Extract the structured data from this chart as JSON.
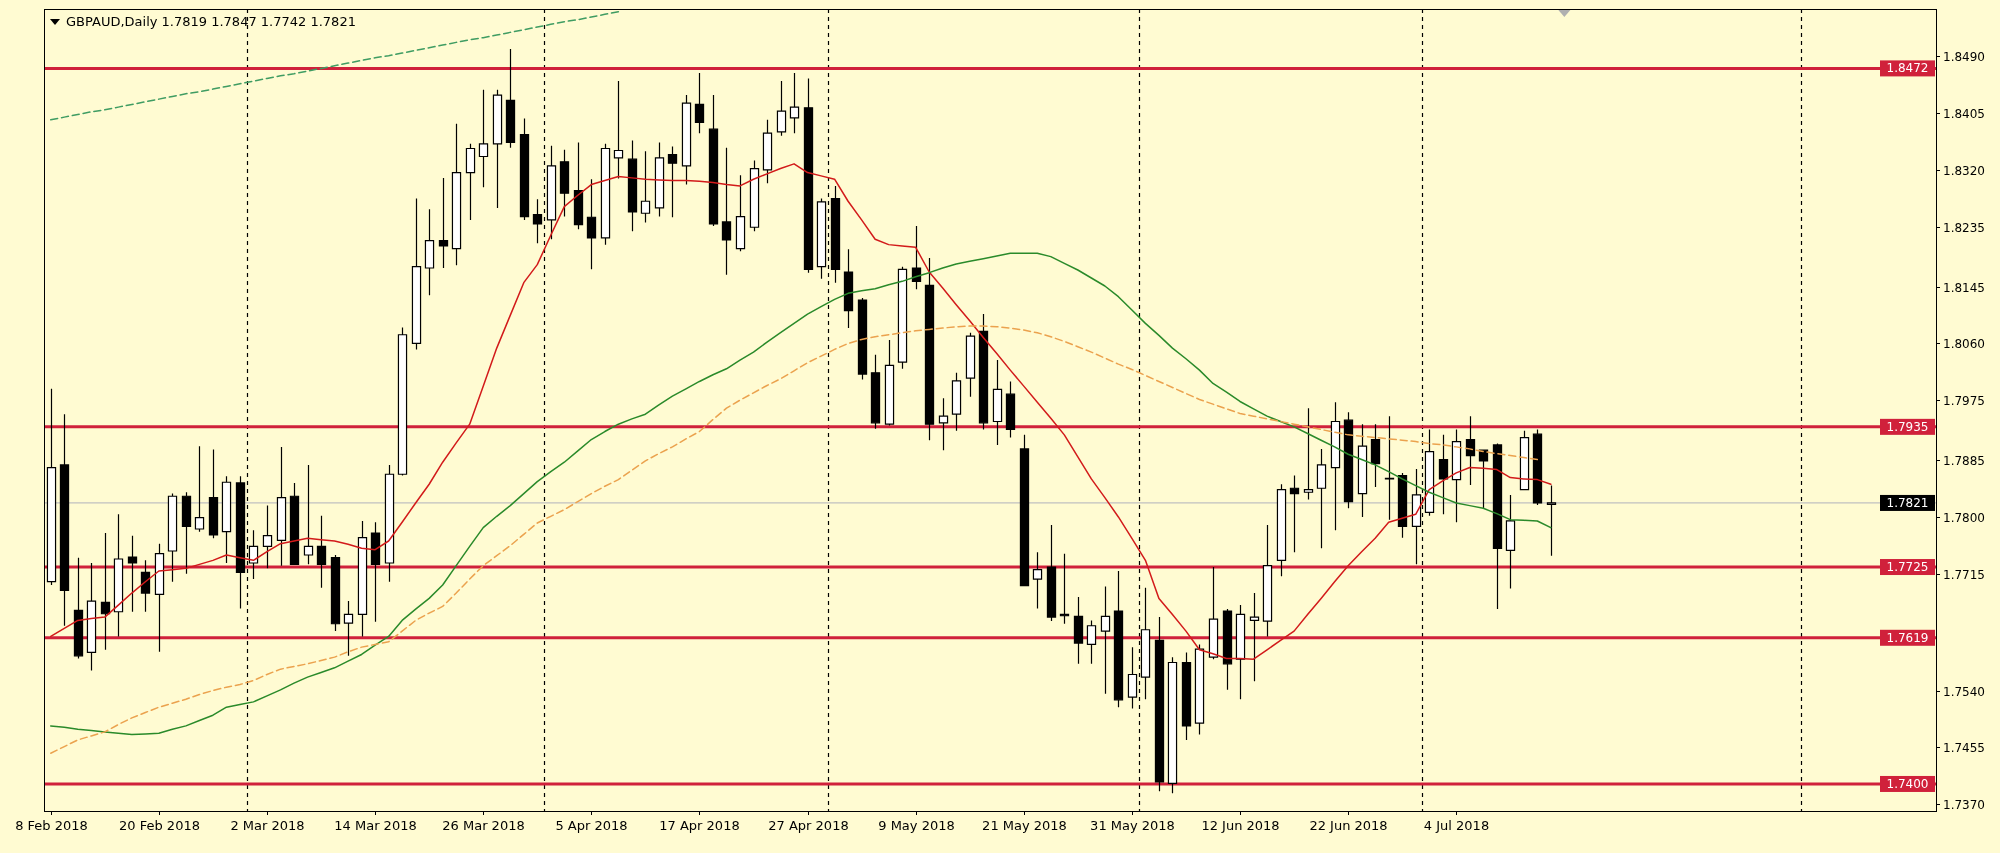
{
  "chart_data": {
    "type": "candlestick",
    "title": "GBPAUD,Daily  1.7819 1.7847 1.7742 1.7821",
    "color": "#000000",
    "categories": [
      "8 Feb 2018",
      null,
      null,
      null,
      null,
      null,
      null,
      null,
      "20 Feb 2018",
      null,
      null,
      null,
      null,
      null,
      null,
      null,
      "2 Mar 2018",
      null,
      null,
      null,
      null,
      null,
      null,
      null,
      "14 Mar 2018",
      null,
      null,
      null,
      null,
      null,
      null,
      null,
      "26 Mar 2018",
      null,
      null,
      null,
      null,
      null,
      null,
      null,
      "5 Apr 2018",
      null,
      null,
      null,
      null,
      null,
      null,
      null,
      "17 Apr 2018",
      null,
      null,
      null,
      null,
      null,
      null,
      null,
      "27 Apr 2018",
      null,
      null,
      null,
      null,
      null,
      null,
      null,
      "9 May 2018",
      null,
      null,
      null,
      null,
      null,
      null,
      null,
      "21 May 2018",
      null,
      null,
      null,
      null,
      null,
      null,
      null,
      "31 May 2018",
      null,
      null,
      null,
      null,
      null,
      null,
      null,
      "12 Jun 2018",
      null,
      null,
      null,
      null,
      null,
      null,
      null,
      "22 Jun 2018",
      null,
      null,
      null,
      null,
      null,
      null,
      null,
      "4 Jul 2018",
      null,
      null,
      null,
      null,
      null,
      null,
      null,
      null,
      null,
      null,
      null,
      null,
      null,
      null,
      null,
      null,
      null,
      null,
      null,
      null,
      null,
      null,
      null,
      null,
      null,
      null,
      null,
      null,
      null,
      null,
      null,
      null,
      null,
      null,
      null
    ],
    "ohlc": [
      [
        1.7703,
        1.7992,
        1.7698,
        1.7874
      ],
      [
        1.7878,
        1.7954,
        1.7637,
        1.769
      ],
      [
        1.766,
        1.7739,
        1.7588,
        1.7592
      ],
      [
        1.7597,
        1.7731,
        1.757,
        1.7674
      ],
      [
        1.7672,
        1.7776,
        1.7601,
        1.7655
      ],
      [
        1.7658,
        1.7804,
        1.7621,
        1.7737
      ],
      [
        1.774,
        1.7772,
        1.7658,
        1.7731
      ],
      [
        1.7717,
        1.7735,
        1.7658,
        1.7686
      ],
      [
        1.7684,
        1.776,
        1.7598,
        1.7745
      ],
      [
        1.7749,
        1.7835,
        1.7703,
        1.7831
      ],
      [
        1.7831,
        1.7837,
        1.7715,
        1.7786
      ],
      [
        1.7782,
        1.7906,
        1.7778,
        1.7799
      ],
      [
        1.7829,
        1.7901,
        1.7768,
        1.7773
      ],
      [
        1.7778,
        1.7861,
        1.7731,
        1.7852
      ],
      [
        1.7851,
        1.7861,
        1.7663,
        1.7717
      ],
      [
        1.7731,
        1.778,
        1.7707,
        1.7756
      ],
      [
        1.7756,
        1.7817,
        1.7723,
        1.7772
      ],
      [
        1.7765,
        1.7905,
        1.7727,
        1.7829
      ],
      [
        1.7831,
        1.7851,
        1.7729,
        1.7729
      ],
      [
        1.7743,
        1.7878,
        1.7729,
        1.7756
      ],
      [
        1.7756,
        1.7802,
        1.7694,
        1.7729
      ],
      [
        1.7739,
        1.7743,
        1.7629,
        1.764
      ],
      [
        1.7641,
        1.7674,
        1.7592,
        1.7654
      ],
      [
        1.7654,
        1.7794,
        1.7621,
        1.7769
      ],
      [
        1.7776,
        1.7792,
        1.7643,
        1.7729
      ],
      [
        1.7731,
        1.7878,
        1.7703,
        1.7864
      ],
      [
        1.7864,
        1.8084,
        1.7862,
        1.8073
      ],
      [
        1.806,
        1.8277,
        1.8051,
        1.8175
      ],
      [
        1.8173,
        1.8261,
        1.8132,
        1.8214
      ],
      [
        1.8214,
        1.8308,
        1.8173,
        1.8206
      ],
      [
        1.8202,
        1.8389,
        1.8177,
        1.8316
      ],
      [
        1.8316,
        1.8359,
        1.8245,
        1.8352
      ],
      [
        1.834,
        1.844,
        1.8294,
        1.8359
      ],
      [
        1.8359,
        1.844,
        1.8263,
        1.8432
      ],
      [
        1.8424,
        1.8501,
        1.8353,
        1.8361
      ],
      [
        1.8373,
        1.8397,
        1.8245,
        1.825
      ],
      [
        1.8253,
        1.8276,
        1.821,
        1.8239
      ],
      [
        1.8245,
        1.8356,
        1.8216,
        1.8326
      ],
      [
        1.8332,
        1.835,
        1.825,
        1.8285
      ],
      [
        1.8289,
        1.8361,
        1.8231,
        1.8238
      ],
      [
        1.8249,
        1.8306,
        1.8171,
        1.8218
      ],
      [
        1.8218,
        1.8359,
        1.8208,
        1.8352
      ],
      [
        1.8338,
        1.8453,
        1.8307,
        1.8349
      ],
      [
        1.8336,
        1.8364,
        1.8228,
        1.8257
      ],
      [
        1.8255,
        1.8348,
        1.8241,
        1.8273
      ],
      [
        1.8263,
        1.8361,
        1.825,
        1.8338
      ],
      [
        1.8343,
        1.8355,
        1.8249,
        1.833
      ],
      [
        1.8326,
        1.8432,
        1.8298,
        1.842
      ],
      [
        1.8418,
        1.8465,
        1.8375,
        1.8391
      ],
      [
        1.8381,
        1.8432,
        1.8236,
        1.8239
      ],
      [
        1.8242,
        1.8353,
        1.8163,
        1.8215
      ],
      [
        1.8202,
        1.8312,
        1.8198,
        1.825
      ],
      [
        1.8234,
        1.8334,
        1.8228,
        1.8322
      ],
      [
        1.832,
        1.8395,
        1.83,
        1.8375
      ],
      [
        1.8377,
        1.8453,
        1.8371,
        1.8408
      ],
      [
        1.8398,
        1.8465,
        1.8375,
        1.8414
      ],
      [
        1.8413,
        1.8457,
        1.8166,
        1.8171
      ],
      [
        1.8175,
        1.8277,
        1.8157,
        1.8272
      ],
      [
        1.8277,
        1.8296,
        1.8151,
        1.8171
      ],
      [
        1.8167,
        1.8201,
        1.8083,
        1.8109
      ],
      [
        1.8125,
        1.8128,
        1.8006,
        1.8014
      ],
      [
        1.8016,
        1.8043,
        1.7932,
        1.7941
      ],
      [
        1.7939,
        1.8065,
        1.7937,
        1.8027
      ],
      [
        1.8032,
        1.8175,
        1.8022,
        1.8171
      ],
      [
        1.8173,
        1.8236,
        1.8141,
        1.8153
      ],
      [
        1.8147,
        1.8188,
        1.7915,
        1.7939
      ],
      [
        1.7941,
        1.7978,
        1.79,
        1.7951
      ],
      [
        1.7954,
        1.8016,
        1.7929,
        1.8004
      ],
      [
        1.8008,
        1.8076,
        1.798,
        1.8071
      ],
      [
        1.8078,
        1.8104,
        1.7931,
        1.7941
      ],
      [
        1.7943,
        1.8035,
        1.7908,
        1.7991
      ],
      [
        1.7984,
        1.8003,
        1.7919,
        1.7931
      ],
      [
        1.7902,
        1.7923,
        1.7697,
        1.7697
      ],
      [
        1.7707,
        1.7747,
        1.7663,
        1.7721
      ],
      [
        1.7725,
        1.7788,
        1.7644,
        1.765
      ],
      [
        1.7654,
        1.7745,
        1.764,
        1.7652
      ],
      [
        1.7651,
        1.768,
        1.758,
        1.7611
      ],
      [
        1.7609,
        1.7645,
        1.758,
        1.7637
      ],
      [
        1.7629,
        1.7696,
        1.7535,
        1.7651
      ],
      [
        1.7659,
        1.7719,
        1.7515,
        1.7526
      ],
      [
        1.753,
        1.7605,
        1.7513,
        1.7564
      ],
      [
        1.756,
        1.7694,
        1.7527,
        1.7631
      ],
      [
        1.7615,
        1.765,
        1.7389,
        1.7403
      ],
      [
        1.7401,
        1.759,
        1.7386,
        1.7582
      ],
      [
        1.7582,
        1.7597,
        1.7466,
        1.7487
      ],
      [
        1.7491,
        1.7609,
        1.7474,
        1.7602
      ],
      [
        1.759,
        1.7725,
        1.7587,
        1.7647
      ],
      [
        1.7659,
        1.7662,
        1.7541,
        1.758
      ],
      [
        1.7587,
        1.7668,
        1.7527,
        1.7654
      ],
      [
        1.7645,
        1.7686,
        1.7554,
        1.765
      ],
      [
        1.7644,
        1.7788,
        1.7621,
        1.7727
      ],
      [
        1.7735,
        1.7849,
        1.7711,
        1.7841
      ],
      [
        1.7843,
        1.7862,
        1.7747,
        1.7835
      ],
      [
        1.7837,
        1.7963,
        1.7826,
        1.7841
      ],
      [
        1.7843,
        1.7902,
        1.7753,
        1.7878
      ],
      [
        1.7874,
        1.7972,
        1.778,
        1.7943
      ],
      [
        1.7945,
        1.7957,
        1.7813,
        1.7823
      ],
      [
        1.7835,
        1.7939,
        1.78,
        1.7906
      ],
      [
        1.7916,
        1.7939,
        1.7845,
        1.788
      ],
      [
        1.7857,
        1.7951,
        1.7796,
        1.7858
      ],
      [
        1.7862,
        1.7866,
        1.7769,
        1.7786
      ],
      [
        1.7786,
        1.7872,
        1.7729,
        1.7833
      ],
      [
        1.7807,
        1.7931,
        1.7802,
        1.7898
      ],
      [
        1.7886,
        1.7923,
        1.7804,
        1.7857
      ],
      [
        1.7856,
        1.7931,
        1.7792,
        1.7913
      ],
      [
        1.7916,
        1.7951,
        1.7848,
        1.7892
      ],
      [
        1.79,
        1.79,
        1.7813,
        1.7884
      ],
      [
        1.7908,
        1.791,
        1.7662,
        1.7753
      ],
      [
        1.775,
        1.7833,
        1.7693,
        1.7794
      ],
      [
        1.7841,
        1.7929,
        1.784,
        1.7919
      ],
      [
        1.7924,
        1.7931,
        1.7818,
        1.7821
      ],
      [
        1.7819,
        1.7847,
        1.7742,
        1.7821
      ],
      null,
      null,
      null,
      null,
      null,
      null,
      null,
      null,
      null,
      null,
      null,
      null,
      null,
      null,
      null,
      null,
      null,
      null,
      null,
      null,
      null,
      null,
      null,
      null,
      null,
      null,
      null,
      null
    ],
    "series": [
      {
        "type": "line",
        "color": "#d21a1a",
        "values": [
          1.7621,
          1.7633,
          1.7645,
          1.7648,
          1.765,
          1.7668,
          1.7686,
          1.7703,
          1.7719,
          1.7721,
          1.7723,
          1.7729,
          1.7735,
          1.7743,
          1.7739,
          1.7735,
          1.7748,
          1.776,
          1.7764,
          1.7768,
          1.7766,
          1.7764,
          1.7759,
          1.7753,
          1.7751,
          1.7764,
          1.7792,
          1.7821,
          1.7849,
          1.7882,
          1.7911,
          1.7939,
          1.7996,
          1.8053,
          1.8102,
          1.8151,
          1.8178,
          1.8222,
          1.8265,
          1.8282,
          1.8298,
          1.8304,
          1.831,
          1.8308,
          1.8306,
          1.8305,
          1.8304,
          1.8304,
          1.8303,
          1.8301,
          1.8298,
          1.8296,
          1.8306,
          1.8314,
          1.8322,
          1.8329,
          1.8316,
          1.8311,
          1.8306,
          1.8273,
          1.8245,
          1.8216,
          1.8208,
          1.8206,
          1.8204,
          1.8167,
          1.8143,
          1.8118,
          1.8094,
          1.8069,
          1.8045,
          1.802,
          1.7996,
          1.7972,
          1.7948,
          1.7923,
          1.789,
          1.7857,
          1.7829,
          1.78,
          1.7768,
          1.7735,
          1.7678,
          1.7654,
          1.7629,
          1.7601,
          1.7595,
          1.7588,
          1.7588,
          1.7587,
          1.7601,
          1.7615,
          1.7629,
          1.7654,
          1.7678,
          1.7703,
          1.7727,
          1.7748,
          1.7768,
          1.7792,
          1.7798,
          1.7804,
          1.7841,
          1.7854,
          1.7866,
          1.7874,
          1.7873,
          1.7871,
          1.7859,
          1.7857,
          1.7856,
          1.7849,
          null,
          null,
          null,
          null,
          null,
          null,
          null,
          null,
          null,
          null,
          null,
          null,
          null,
          null,
          null,
          null,
          null,
          null,
          null,
          null,
          null,
          null,
          null,
          null,
          null,
          null,
          null,
          null
        ]
      },
      {
        "type": "line",
        "color": "#2a8a2a",
        "values": [
          1.7487,
          1.7485,
          1.7482,
          1.748,
          1.7478,
          1.7476,
          1.7474,
          1.7475,
          1.7476,
          1.7482,
          1.7487,
          1.7495,
          1.7503,
          1.7515,
          1.7519,
          1.7523,
          1.7532,
          1.7541,
          1.7551,
          1.756,
          1.7567,
          1.7574,
          1.7584,
          1.7594,
          1.7608,
          1.7621,
          1.7645,
          1.7662,
          1.7678,
          1.7698,
          1.7727,
          1.7756,
          1.7784,
          1.7801,
          1.7817,
          1.7835,
          1.7853,
          1.7868,
          1.7882,
          1.7899,
          1.7916,
          1.7928,
          1.7939,
          1.7947,
          1.7954,
          1.7968,
          1.7981,
          1.7992,
          1.8003,
          1.8013,
          1.8022,
          1.8035,
          1.8047,
          1.8062,
          1.8076,
          1.809,
          1.8104,
          1.8115,
          1.8126,
          1.8135,
          1.8139,
          1.8142,
          1.8148,
          1.8153,
          1.816,
          1.8166,
          1.8173,
          1.8179,
          1.8183,
          1.8187,
          1.8191,
          1.8195,
          1.8195,
          1.8195,
          1.819,
          1.818,
          1.817,
          1.8158,
          1.8146,
          1.813,
          1.811,
          1.809,
          1.8072,
          1.8053,
          1.8037,
          1.802,
          1.8,
          1.7987,
          1.7973,
          1.7962,
          1.7951,
          1.7943,
          1.7935,
          1.7925,
          1.7915,
          1.7905,
          1.7894,
          1.7886,
          1.7878,
          1.7868,
          1.7857,
          1.7847,
          1.7837,
          1.7829,
          1.7821,
          1.7817,
          1.7813,
          1.7805,
          1.7796,
          1.7795,
          1.7794,
          1.7784,
          null,
          null,
          null,
          null,
          null,
          null,
          null,
          null,
          null,
          null,
          null,
          null,
          null,
          null,
          null,
          null,
          null,
          null,
          null,
          null,
          null,
          null,
          null,
          null,
          null,
          null,
          null,
          null
        ]
      },
      {
        "type": "line",
        "color": "#eba24e",
        "line_style": "dashed",
        "values": [
          1.7446,
          1.7456,
          1.7466,
          1.7472,
          1.7478,
          1.7489,
          1.7499,
          1.7507,
          1.7515,
          1.7521,
          1.7527,
          1.7534,
          1.754,
          1.7545,
          1.7549,
          1.7555,
          1.7564,
          1.7572,
          1.7576,
          1.758,
          1.7585,
          1.759,
          1.7598,
          1.7605,
          1.7609,
          1.7613,
          1.7629,
          1.7645,
          1.7656,
          1.7666,
          1.7686,
          1.7707,
          1.7727,
          1.7742,
          1.7757,
          1.7774,
          1.7791,
          1.7801,
          1.7811,
          1.7823,
          1.7835,
          1.7846,
          1.7856,
          1.787,
          1.7884,
          1.7895,
          1.7905,
          1.7917,
          1.7928,
          1.7946,
          1.7963,
          1.7975,
          1.7986,
          1.7997,
          1.8007,
          1.8019,
          1.8031,
          1.8041,
          1.8051,
          1.806,
          1.8066,
          1.807,
          1.8073,
          1.8076,
          1.8079,
          1.8081,
          1.8083,
          1.8085,
          1.8086,
          1.8086,
          1.8085,
          1.8083,
          1.808,
          1.8076,
          1.807,
          1.8063,
          1.8055,
          1.8047,
          1.8038,
          1.8029,
          1.8021,
          1.8012,
          1.8003,
          1.7994,
          1.7985,
          1.7976,
          1.7969,
          1.7962,
          1.7955,
          1.7951,
          1.7947,
          1.7943,
          1.7939,
          1.7935,
          1.7931,
          1.7927,
          1.7923,
          1.7921,
          1.7919,
          1.7917,
          1.7915,
          1.7913,
          1.791,
          1.7908,
          1.7905,
          1.7902,
          1.7898,
          1.7895,
          1.7892,
          1.7889,
          1.7886,
          null,
          null,
          null,
          null,
          null,
          null,
          null,
          null,
          null,
          null,
          null,
          null,
          null,
          null,
          null,
          null,
          null,
          null,
          null,
          null,
          null,
          null,
          null,
          null,
          null,
          null,
          null,
          null,
          null
        ]
      },
      {
        "type": "line",
        "color": "#3f9c62",
        "line_style": "dashed",
        "values": [
          1.8395,
          1.8399,
          1.8403,
          1.8407,
          1.841,
          1.8414,
          1.8418,
          1.8422,
          1.8426,
          1.843,
          1.8434,
          1.8437,
          1.8441,
          1.8445,
          1.8449,
          1.8453,
          1.8457,
          1.8461,
          1.8464,
          1.8468,
          1.8472,
          1.8476,
          1.848,
          1.8484,
          1.8488,
          1.8491,
          1.8495,
          1.8499,
          1.8503,
          1.8507,
          1.8511,
          1.8515,
          1.8518,
          1.8522,
          1.8526,
          1.853,
          1.8534,
          1.8538,
          1.8542,
          1.8545,
          1.8549,
          1.8553,
          1.8557,
          null,
          null,
          null,
          null,
          null,
          null,
          null,
          null,
          null,
          null,
          null,
          null,
          null,
          null,
          null,
          null,
          null,
          null,
          null,
          null,
          null,
          null,
          null,
          null,
          null,
          null,
          null,
          null,
          null,
          null,
          null,
          null,
          null,
          null,
          null,
          null,
          null,
          null,
          null,
          null,
          null,
          null,
          null,
          null,
          null,
          null,
          null,
          null,
          null,
          null,
          null,
          null,
          null,
          null,
          null,
          null,
          null,
          null,
          null,
          null,
          null,
          null,
          null,
          null,
          null,
          null,
          null,
          null,
          null,
          null,
          null,
          null,
          null,
          null,
          null,
          null,
          null,
          null,
          null,
          null,
          null,
          null,
          null,
          null,
          null,
          null,
          null,
          null,
          null,
          null,
          null,
          null,
          null,
          null,
          null,
          null,
          null
        ]
      }
    ],
    "ylim": [
      1.73595,
      1.8561
    ],
    "yticks": [
      {
        "value": 1.849,
        "label": "1.8490"
      },
      1.8405,
      {
        "value": 1.832,
        "label": "1.8320"
      },
      1.8235,
      1.8145,
      {
        "value": 1.806,
        "label": "1.8060"
      },
      1.7975,
      1.7885,
      {
        "value": 1.78,
        "label": "1.7800"
      },
      1.7715,
      {
        "value": 1.754,
        "label": "1.7540"
      },
      1.7455,
      {
        "value": 1.737,
        "label": "1.7370"
      }
    ],
    "ref_lines": [
      {
        "axis": "y",
        "value": 1.8472,
        "label": "1.8472",
        "color": "#d0213b"
      },
      {
        "axis": "y",
        "value": 1.7935,
        "label": "1.7935",
        "color": "#d0213b"
      },
      {
        "axis": "y",
        "value": 1.7725,
        "label": "1.7725",
        "color": "#d0213b"
      },
      {
        "axis": "y",
        "value": 1.7619,
        "label": "1.7619",
        "color": "#d0213b"
      },
      {
        "axis": "y",
        "value": 1.74,
        "label": "1.7400",
        "color": "#d0213b"
      },
      {
        "axis": "y",
        "value": 1.7821,
        "label": "1.7821",
        "color": "#c0c0c0"
      }
    ]
  }
}
